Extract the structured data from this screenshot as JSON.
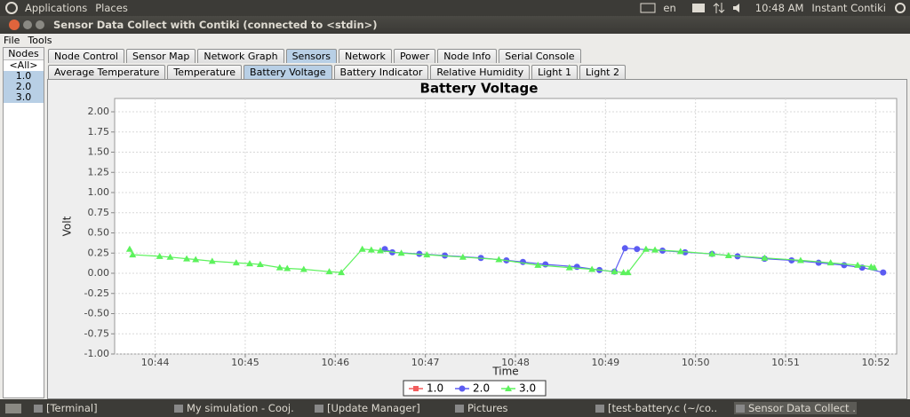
{
  "top_panel": {
    "menus": [
      "Applications",
      "Places"
    ],
    "status": [
      "en",
      "10:48 AM",
      "Instant Contiki"
    ]
  },
  "window": {
    "title": "Sensor Data Collect with Contiki (connected to <stdin>)",
    "menu": [
      "File",
      "Tools"
    ],
    "nodes": {
      "header": "Nodes",
      "items": [
        "<All>",
        "1.0",
        "2.0",
        "3.0"
      ]
    },
    "tabs": [
      "Node Control",
      "Sensor Map",
      "Network Graph",
      "Sensors",
      "Network",
      "Power",
      "Node Info",
      "Serial Console"
    ],
    "subtabs": [
      "Average Temperature",
      "Temperature",
      "Battery Voltage",
      "Battery Indicator",
      "Relative Humidity",
      "Light 1",
      "Light 2"
    ]
  },
  "chart_data": {
    "type": "line",
    "title": "Battery Voltage",
    "x_label": "Time",
    "y_label": "Volt",
    "grid": true,
    "xlim": [
      "10:43:33",
      "10:52:14"
    ],
    "xticks": [
      "10:44",
      "10:45",
      "10:46",
      "10:47",
      "10:48",
      "10:49",
      "10:50",
      "10:51",
      "10:52"
    ],
    "ylim": [
      -1,
      2.165
    ],
    "yticks": [
      {
        "value": -1,
        "label": "-1.00"
      },
      {
        "value": -0.75,
        "label": "-0.75"
      },
      {
        "value": -0.5,
        "label": "-0.50"
      },
      {
        "value": -0.25,
        "label": "-0.25"
      },
      {
        "value": 0,
        "label": "0.00"
      },
      {
        "value": 0.25,
        "label": "0.25"
      },
      {
        "value": 0.5,
        "label": "0.50"
      },
      {
        "value": 0.75,
        "label": "0.75"
      },
      {
        "value": 1,
        "label": "1.00"
      },
      {
        "value": 1.25,
        "label": "1.25"
      },
      {
        "value": 1.5,
        "label": "1.50"
      },
      {
        "value": 1.75,
        "label": "1.75"
      },
      {
        "value": 2,
        "label": "2.00"
      }
    ],
    "series": [
      {
        "name": "1.0",
        "color": "#f25c5c",
        "marker": "square",
        "x": [],
        "values": []
      },
      {
        "name": "2.0",
        "color": "#5c5cf2",
        "marker": "circle",
        "x": [
          "10:46:33",
          "10:46:38",
          "10:46:56",
          "10:47:13",
          "10:47:37",
          "10:47:54",
          "10:48:05",
          "10:48:20",
          "10:48:41",
          "10:48:56",
          "10:49:06",
          "10:49:13",
          "10:49:21",
          "10:49:38",
          "10:49:53",
          "10:50:11",
          "10:50:28",
          "10:50:46",
          "10:51:04",
          "10:51:22",
          "10:51:39",
          "10:51:51",
          "10:52:05"
        ],
        "values": [
          0.3,
          0.26,
          0.24,
          0.22,
          0.19,
          0.16,
          0.14,
          0.11,
          0.08,
          0.04,
          0.02,
          0.31,
          0.3,
          0.28,
          0.26,
          0.24,
          0.21,
          0.18,
          0.16,
          0.13,
          0.1,
          0.07,
          0.01
        ]
      },
      {
        "name": "3.0",
        "color": "#5cf25c",
        "marker": "triangle",
        "x": [
          "10:43:43",
          "10:43:45",
          "10:44:03",
          "10:44:10",
          "10:44:21",
          "10:44:27",
          "10:44:38",
          "10:44:54",
          "10:45:03",
          "10:45:10",
          "10:45:23",
          "10:45:28",
          "10:45:39",
          "10:45:56",
          "10:46:04",
          "10:46:18",
          "10:46:24",
          "10:46:30",
          "10:46:44",
          "10:47:01",
          "10:47:25",
          "10:47:49",
          "10:48:15",
          "10:48:36",
          "10:48:51",
          "10:49:06",
          "10:49:12",
          "10:49:15",
          "10:49:27",
          "10:49:33",
          "10:49:50",
          "10:50:11",
          "10:50:22",
          "10:50:46",
          "10:51:10",
          "10:51:30",
          "10:51:48",
          "10:51:57",
          "10:51:59"
        ],
        "values": [
          0.3,
          0.23,
          0.21,
          0.2,
          0.18,
          0.17,
          0.15,
          0.13,
          0.12,
          0.11,
          0.07,
          0.06,
          0.05,
          0.02,
          0.01,
          0.3,
          0.29,
          0.28,
          0.25,
          0.23,
          0.2,
          0.17,
          0.1,
          0.07,
          0.05,
          0.02,
          0.01,
          0.01,
          0.3,
          0.29,
          0.27,
          0.24,
          0.22,
          0.19,
          0.16,
          0.13,
          0.1,
          0.08,
          0.07
        ]
      }
    ],
    "legend": "bottom"
  },
  "taskbar": [
    "[Terminal]",
    "My simulation - Cooj...",
    "[Update Manager]",
    "Pictures",
    "[test-battery.c (~/co...",
    "Sensor Data Collect ..."
  ]
}
